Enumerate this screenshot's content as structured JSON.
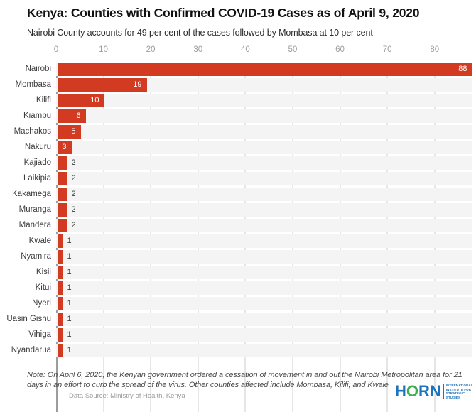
{
  "chart_data": {
    "type": "bar",
    "orientation": "horizontal",
    "title": "Kenya: Counties with Confirmed COVID-19 Cases as of April 9, 2020",
    "subtitle": "Nairobi County accounts for 49 per cent of the cases followed by Mombasa at 10 per cent",
    "categories": [
      "Nairobi",
      "Mombasa",
      "Kilifi",
      "Kiambu",
      "Machakos",
      "Nakuru",
      "Kajiado",
      "Laikipia",
      "Kakamega",
      "Muranga",
      "Mandera",
      "Kwale",
      "Nyamira",
      "Kisii",
      "Kitui",
      "Nyeri",
      "Uasin Gishu",
      "Vihiga",
      "Nyandarua"
    ],
    "values": [
      88,
      19,
      10,
      6,
      5,
      3,
      2,
      2,
      2,
      2,
      2,
      1,
      1,
      1,
      1,
      1,
      1,
      1,
      1
    ],
    "x_ticks": [
      0,
      10,
      20,
      30,
      40,
      50,
      60,
      70,
      80
    ],
    "xlim": [
      0,
      88
    ],
    "grid": "vertical",
    "legend_position": "none",
    "value_label_inside_min": 3,
    "colors": {
      "bar": "#d23b22",
      "band": "#f4f4f4",
      "gridline": "#e6e6e6",
      "axis_line": "#9c9c9c",
      "tick_label": "#9e9e9e",
      "category_label": "#3d3d3d",
      "value_label_inside": "#ffffff",
      "value_label_outside": "#3d3d3d"
    }
  },
  "footer": {
    "note": "Note: On April 6, 2020, the Kenyan government ordered a cessation of movement in and out the Nairobi Metropolitan area for 21 days in an effort to curb the spread of the virus. Other counties affected include Mombasa, Kilifi, and Kwale",
    "source": "Data Source: Ministry of Health, Kenya"
  },
  "logo": {
    "blue": "#1c75bc",
    "green": "#3cb04a",
    "letters": [
      {
        "char": "H",
        "color": "#1c75bc"
      },
      {
        "char": "O",
        "color": "#3cb04a"
      },
      {
        "char": "R",
        "color": "#1c75bc"
      },
      {
        "char": "N",
        "color": "#1c75bc"
      }
    ],
    "tagline": [
      "INTERNATIONAL",
      "INSTITUTE FOR",
      "STRATEGIC",
      "STUDIES"
    ]
  }
}
